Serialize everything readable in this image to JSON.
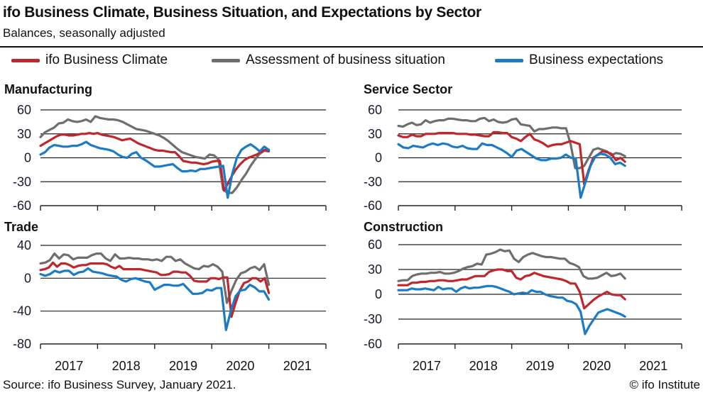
{
  "header": {
    "title": "ifo Business Climate, Business Situation, and Expectations by Sector",
    "subtitle": "Balances, seasonally adjusted"
  },
  "legend": [
    {
      "label": "ifo Business Climate",
      "color": "#c0272d"
    },
    {
      "label": "Assessment of business situation",
      "color": "#6e6e6e"
    },
    {
      "label": "Business expectations",
      "color": "#1a7bc6"
    }
  ],
  "footer": {
    "source": "Source: ifo Business Survey, January 2021.",
    "copyright": "© ifo Institute"
  },
  "chart_data": [
    {
      "type": "line",
      "title": "Manufacturing",
      "x_start": "2017-01",
      "x_end": "2021-01",
      "frequency": "monthly",
      "xticks": [
        "2017",
        "2018",
        "2019",
        "2020",
        "2021"
      ],
      "ylim": [
        -60,
        60
      ],
      "yticks": [
        60,
        30,
        0,
        -30,
        -60
      ],
      "grid": true,
      "series": [
        {
          "name": "ifo Business Climate",
          "color": "#c0272d",
          "values": [
            15,
            18,
            21,
            24,
            27,
            29,
            29,
            28,
            28,
            29,
            30,
            30,
            31,
            30,
            31,
            29,
            28,
            27,
            26,
            24,
            22,
            23,
            24,
            21,
            18,
            16,
            14,
            12,
            10,
            9,
            9,
            8,
            7,
            7,
            2,
            -4,
            -5,
            -6,
            -6,
            -7,
            -8,
            -7,
            -5,
            -4,
            -4,
            -41,
            -32,
            -22,
            -14,
            -8,
            -3,
            0,
            2,
            4,
            7,
            10,
            9
          ]
        },
        {
          "name": "Assessment of business situation",
          "color": "#6e6e6e",
          "values": [
            26,
            32,
            35,
            38,
            43,
            44,
            48,
            46,
            45,
            46,
            48,
            45,
            52,
            50,
            49,
            48,
            48,
            47,
            45,
            42,
            39,
            36,
            35,
            34,
            32,
            30,
            28,
            25,
            21,
            16,
            11,
            7,
            5,
            3,
            1,
            0,
            -1,
            4,
            3,
            -2,
            -40,
            -44,
            -44,
            -37,
            -28,
            -20,
            -10,
            -2,
            5,
            9,
            8
          ]
        },
        {
          "name": "Business expectations",
          "color": "#1a7bc6",
          "values": [
            4,
            7,
            13,
            16,
            15,
            14,
            14,
            15,
            15,
            17,
            20,
            16,
            14,
            12,
            11,
            10,
            8,
            4,
            1,
            0,
            5,
            7,
            0,
            -3,
            -7,
            -11,
            -11,
            -10,
            -9,
            -8,
            -13,
            -17,
            -17,
            -16,
            -17,
            -14,
            -14,
            -13,
            -12,
            -11,
            -10,
            -50,
            -20,
            0,
            10,
            14,
            17,
            13,
            8,
            14,
            10
          ]
        }
      ]
    },
    {
      "type": "line",
      "title": "Service Sector",
      "x_start": "2017-01",
      "x_end": "2021-01",
      "frequency": "monthly",
      "xticks": [
        "2017",
        "2018",
        "2019",
        "2020",
        "2021"
      ],
      "ylim": [
        -60,
        60
      ],
      "yticks": [
        60,
        30,
        0,
        -30,
        -60
      ],
      "grid": true,
      "series": [
        {
          "name": "ifo Business Climate",
          "color": "#c0272d",
          "values": [
            28,
            26,
            26,
            29,
            27,
            27,
            30,
            30,
            30,
            31,
            31,
            31,
            31,
            30,
            30,
            30,
            29,
            29,
            28,
            27,
            27,
            32,
            32,
            31,
            31,
            26,
            24,
            21,
            26,
            30,
            23,
            21,
            18,
            14,
            16,
            17,
            17,
            19,
            21,
            19,
            17,
            -33,
            -15,
            0,
            4,
            8,
            7,
            5,
            -3,
            0,
            -5
          ]
        },
        {
          "name": "Assessment of business situation",
          "color": "#6e6e6e",
          "values": [
            40,
            39,
            42,
            44,
            41,
            42,
            47,
            44,
            46,
            47,
            47,
            49,
            49,
            48,
            47,
            47,
            46,
            46,
            49,
            50,
            46,
            48,
            45,
            44,
            45,
            48,
            49,
            42,
            41,
            40,
            33,
            36,
            36,
            37,
            38,
            38,
            37,
            37,
            17,
            -13,
            -13,
            -10,
            0,
            10,
            12,
            10,
            8,
            3,
            6,
            5,
            2
          ]
        },
        {
          "name": "Business expectations",
          "color": "#1a7bc6",
          "values": [
            17,
            13,
            12,
            15,
            14,
            13,
            16,
            18,
            16,
            18,
            17,
            14,
            13,
            15,
            12,
            11,
            11,
            18,
            16,
            16,
            13,
            10,
            6,
            1,
            9,
            11,
            7,
            3,
            -1,
            -3,
            -3,
            -1,
            -1,
            0,
            4,
            0,
            -1,
            -50,
            -30,
            -10,
            2,
            5,
            4,
            0,
            -8,
            -6,
            -10
          ]
        }
      ]
    },
    {
      "type": "line",
      "title": "Trade",
      "x_start": "2017-01",
      "x_end": "2021-01",
      "frequency": "monthly",
      "xticks": [
        "2017",
        "2018",
        "2019",
        "2020",
        "2021"
      ],
      "ylim": [
        -80,
        40
      ],
      "yticks": [
        40,
        0,
        -40,
        -80
      ],
      "grid": true,
      "series": [
        {
          "name": "ifo Business Climate",
          "color": "#c0272d",
          "values": [
            10,
            11,
            13,
            19,
            14,
            18,
            18,
            16,
            13,
            15,
            16,
            16,
            18,
            18,
            18,
            18,
            17,
            14,
            12,
            15,
            11,
            11,
            11,
            11,
            11,
            10,
            9,
            8,
            7,
            4,
            4,
            5,
            8,
            8,
            7,
            7,
            3,
            -3,
            -4,
            -4,
            -4,
            0,
            0,
            -1,
            1,
            1,
            -47,
            -30,
            -15,
            -6,
            -4,
            0,
            0,
            -4,
            0,
            -18
          ]
        },
        {
          "name": "Assessment of business situation",
          "color": "#6e6e6e",
          "values": [
            18,
            19,
            22,
            30,
            24,
            29,
            28,
            23,
            25,
            25,
            25,
            28,
            30,
            30,
            24,
            21,
            29,
            24,
            24,
            25,
            24,
            24,
            23,
            23,
            22,
            23,
            21,
            26,
            26,
            21,
            23,
            18,
            15,
            12,
            11,
            15,
            14,
            17,
            14,
            8,
            -30,
            -15,
            -2,
            6,
            8,
            12,
            14,
            10,
            17,
            -8
          ]
        },
        {
          "name": "Business expectations",
          "color": "#1a7bc6",
          "values": [
            5,
            3,
            5,
            9,
            7,
            9,
            9,
            4,
            7,
            8,
            12,
            8,
            7,
            6,
            4,
            3,
            2,
            -2,
            -4,
            -1,
            0,
            -2,
            -4,
            -5,
            -14,
            -11,
            -8,
            -8,
            -9,
            -9,
            -7,
            -13,
            -19,
            -19,
            -18,
            -14,
            -15,
            -12,
            -12,
            -63,
            -40,
            -22,
            -15,
            -14,
            -8,
            -11,
            -16,
            -16,
            -26
          ]
        }
      ]
    },
    {
      "type": "line",
      "title": "Construction",
      "x_start": "2017-01",
      "x_end": "2021-01",
      "frequency": "monthly",
      "xticks": [
        "2017",
        "2018",
        "2019",
        "2020",
        "2021"
      ],
      "ylim": [
        -60,
        60
      ],
      "yticks": [
        60,
        30,
        0,
        -30,
        -60
      ],
      "grid": true,
      "series": [
        {
          "name": "ifo Business Climate",
          "color": "#c0272d",
          "values": [
            11,
            11,
            11,
            14,
            14,
            15,
            15,
            16,
            16,
            17,
            17,
            16,
            16,
            17,
            18,
            18,
            20,
            22,
            22,
            22,
            27,
            29,
            30,
            30,
            28,
            28,
            20,
            18,
            22,
            23,
            26,
            24,
            22,
            21,
            20,
            19,
            18,
            16,
            13,
            13,
            3,
            -17,
            -12,
            -7,
            -3,
            0,
            3,
            0,
            -1,
            -1,
            -6
          ]
        },
        {
          "name": "Assessment of business situation",
          "color": "#6e6e6e",
          "values": [
            16,
            17,
            17,
            22,
            24,
            25,
            25,
            26,
            26,
            27,
            25,
            25,
            26,
            28,
            31,
            33,
            34,
            37,
            36,
            48,
            49,
            51,
            54,
            52,
            53,
            43,
            39,
            45,
            48,
            50,
            48,
            46,
            45,
            45,
            44,
            43,
            43,
            38,
            36,
            33,
            22,
            19,
            19,
            20,
            23,
            26,
            22,
            23,
            25,
            19
          ]
        },
        {
          "name": "Business expectations",
          "color": "#1a7bc6",
          "values": [
            5,
            5,
            5,
            7,
            6,
            6,
            7,
            6,
            5,
            9,
            6,
            7,
            7,
            3,
            7,
            9,
            7,
            8,
            8,
            9,
            10,
            10,
            9,
            7,
            5,
            3,
            0,
            1,
            2,
            1,
            5,
            3,
            3,
            0,
            -2,
            -3,
            -4,
            -4,
            -8,
            -9,
            -12,
            -21,
            -48,
            -38,
            -30,
            -22,
            -20,
            -18,
            -20,
            -22,
            -24,
            -27
          ]
        }
      ]
    }
  ]
}
